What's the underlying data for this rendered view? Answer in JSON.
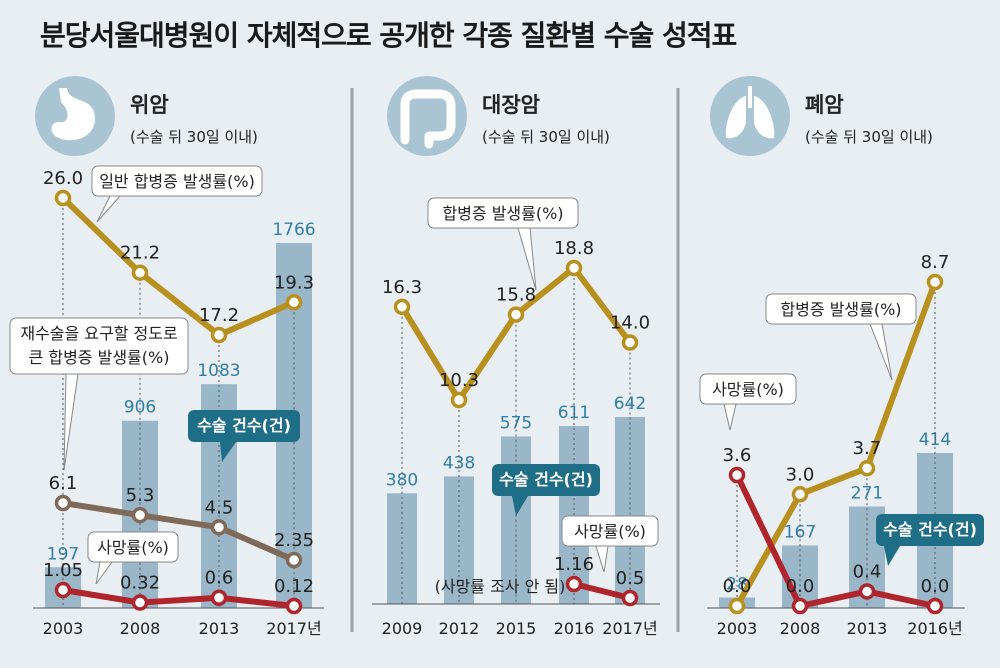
{
  "title": "분당서울대병원이 자체적으로 공개한 각종 질환별 수술 성적표",
  "colors": {
    "background": "#e8eef2",
    "bar": "#9ab7c9",
    "bar_label": "#2f7fa8",
    "complication": "#b8901e",
    "severe_complication": "#7f6a5a",
    "mortality": "#b0242c",
    "callout_teal": "#1f6e87",
    "icon_circle": "#a9c4d3"
  },
  "panels": [
    {
      "icon": "stomach-icon",
      "name": "위암",
      "subtitle": "(수술 뒤 30일 이내)",
      "years": [
        "2003",
        "2008",
        "2013",
        "2017년"
      ],
      "annotations": {
        "complication": "일반 합병증 발생률(%)",
        "severe": "재수술을 요구할 정도로\n큰 합병증 발생률(%)",
        "mortality": "사망률(%)",
        "surgeries": "수술 건수(건)"
      }
    },
    {
      "icon": "colon-icon",
      "name": "대장암",
      "subtitle": "(수술 뒤 30일 이내)",
      "years": [
        "2009",
        "2012",
        "2015",
        "2016",
        "2017년"
      ],
      "annotations": {
        "complication": "합병증 발생률(%)",
        "mortality": "사망률(%)",
        "surgeries": "수술 건수(건)",
        "note": "(사망률 조사 안 됨)"
      }
    },
    {
      "icon": "lung-icon",
      "name": "폐암",
      "subtitle": "(수술 뒤 30일 이내)",
      "years": [
        "2003",
        "2008",
        "2013",
        "2016년"
      ],
      "annotations": {
        "complication": "합병증 발생률(%)",
        "mortality": "사망률(%)",
        "surgeries": "수술 건수(건)"
      }
    }
  ],
  "chart_data": [
    {
      "type": "bar+line",
      "title": "위암",
      "categories": [
        "2003",
        "2008",
        "2013",
        "2017년"
      ],
      "series": [
        {
          "name": "수술 건수(건)",
          "kind": "bar",
          "values": [
            197,
            906,
            1083,
            1766
          ],
          "labels": [
            "197",
            "906",
            "1083",
            "1766"
          ]
        },
        {
          "name": "일반 합병증 발생률(%)",
          "kind": "line",
          "values": [
            26.0,
            21.2,
            17.2,
            19.3
          ],
          "labels": [
            "26.0",
            "21.2",
            "17.2",
            "19.3"
          ]
        },
        {
          "name": "재수술을 요구할 정도로 큰 합병증 발생률(%)",
          "kind": "line",
          "values": [
            6.1,
            5.3,
            4.5,
            2.35
          ],
          "labels": [
            "6.1",
            "5.3",
            "4.5",
            "2.35"
          ]
        },
        {
          "name": "사망률(%)",
          "kind": "line",
          "values": [
            1.05,
            0.32,
            0.6,
            0.12
          ],
          "labels": [
            "1.05",
            "0.32",
            "0.6",
            "0.12"
          ]
        }
      ]
    },
    {
      "type": "bar+line",
      "title": "대장암",
      "categories": [
        "2009",
        "2012",
        "2015",
        "2016",
        "2017년"
      ],
      "series": [
        {
          "name": "수술 건수(건)",
          "kind": "bar",
          "values": [
            380,
            438,
            575,
            611,
            642
          ],
          "labels": [
            "380",
            "438",
            "575",
            "611",
            "642"
          ]
        },
        {
          "name": "합병증 발생률(%)",
          "kind": "line",
          "values": [
            16.3,
            10.3,
            15.8,
            18.8,
            14.0
          ],
          "labels": [
            "16.3",
            "10.3",
            "15.8",
            "18.8",
            "14.0"
          ]
        },
        {
          "name": "사망률(%)",
          "kind": "line",
          "values": [
            null,
            null,
            null,
            1.16,
            0.5
          ],
          "labels": [
            null,
            null,
            null,
            "1.16",
            "0.5"
          ]
        }
      ]
    },
    {
      "type": "bar+line",
      "title": "폐암",
      "categories": [
        "2003",
        "2008",
        "2013",
        "2016년"
      ],
      "series": [
        {
          "name": "수술 건수(건)",
          "kind": "bar",
          "values": [
            28,
            167,
            271,
            414
          ],
          "labels": [
            "28",
            "167",
            "271",
            "414"
          ]
        },
        {
          "name": "합병증 발생률(%)",
          "kind": "line",
          "values": [
            0.0,
            3.0,
            3.7,
            8.7
          ],
          "labels": [
            "0.0",
            "3.0",
            "3.7",
            "8.7"
          ]
        },
        {
          "name": "사망률(%)",
          "kind": "line",
          "values": [
            3.6,
            0.0,
            0.4,
            0.0
          ],
          "labels": [
            "3.6",
            "0.0",
            "0.4",
            "0.0"
          ]
        }
      ]
    }
  ]
}
